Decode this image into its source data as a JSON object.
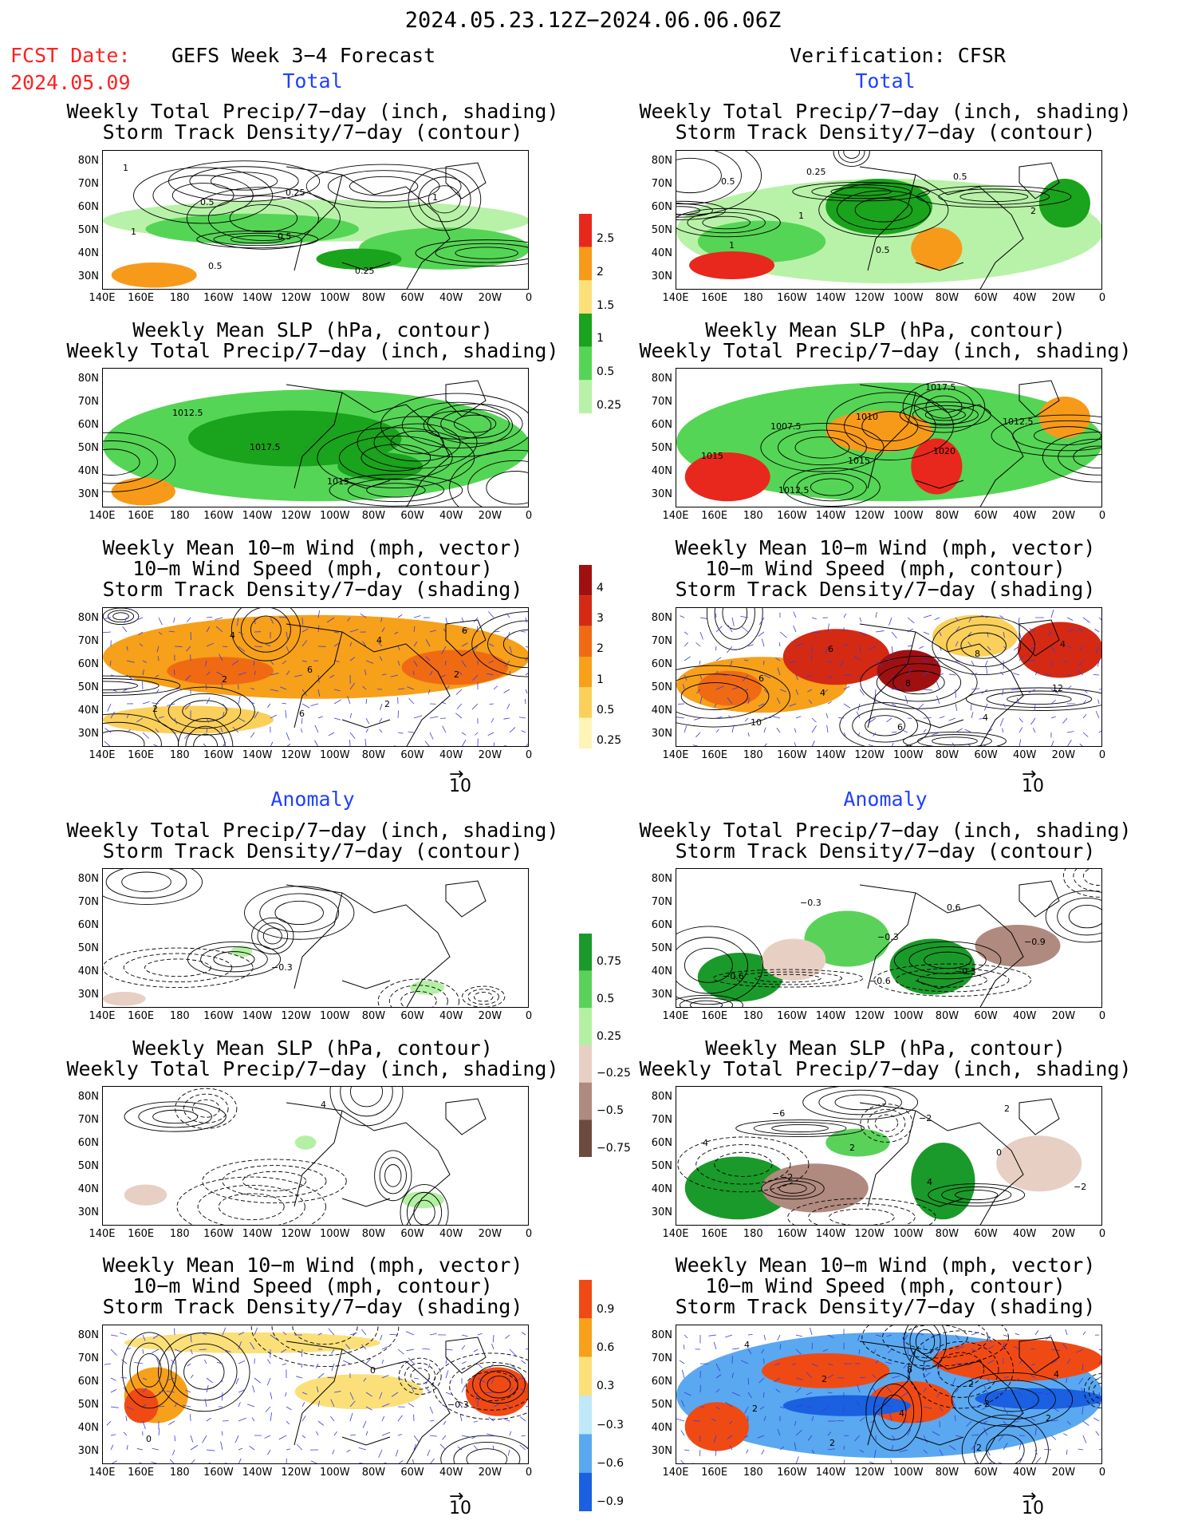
{
  "header": {
    "date_range": "2024.05.23.12Z−2024.06.06.06Z",
    "fcst_label": "FCST Date:",
    "fcst_date": "2024.05.09",
    "left_title": "GEFS Week 3−4 Forecast",
    "right_title": "Verification: CFSR"
  },
  "sections": {
    "total_left": "Total",
    "total_right": "Total",
    "anom_left": "Anomaly",
    "anom_right": "Anomaly"
  },
  "panel_titles": {
    "precip_storm": [
      "Weekly Total Precip/7−day (inch, shading)",
      "Storm Track Density/7−day (contour)"
    ],
    "slp_precip": [
      "Weekly Mean SLP (hPa, contour)",
      "Weekly Total Precip/7−day (inch, shading)"
    ],
    "wind_storm": [
      "Weekly Mean 10−m Wind (mph, vector)",
      "10−m Wind Speed (mph, contour)",
      "Storm Track Density/7−day (shading)"
    ]
  },
  "axes": {
    "lat_labels": [
      "80N",
      "70N",
      "60N",
      "50N",
      "40N",
      "30N"
    ],
    "lon_labels": [
      "140E",
      "160E",
      "180",
      "160W",
      "140W",
      "120W",
      "100W",
      "80W",
      "60W",
      "40W",
      "20W",
      "0"
    ]
  },
  "vector_ref": "10",
  "colorbars": {
    "total_precip": {
      "labels": [
        "2.5",
        "2",
        "1.5",
        "1",
        "0.5",
        "0.25"
      ],
      "colors": [
        "#e8281c",
        "#f79a1a",
        "#fbe07a",
        "#1aa31c",
        "#55d555",
        "#b8f2a8"
      ]
    },
    "total_storm": {
      "labels": [
        "4",
        "3",
        "2",
        "1",
        "0.5",
        "0.25"
      ],
      "colors": [
        "#a01010",
        "#d42a14",
        "#f06a14",
        "#f7a01a",
        "#fbd05a",
        "#fef4b8"
      ]
    },
    "anom_precip": {
      "labels": [
        "0.75",
        "0.5",
        "0.25",
        "−0.25",
        "−0.5",
        "−0.75"
      ],
      "colors": [
        "#1a9a2a",
        "#5ad25a",
        "#b4f0a4",
        "#e8cfc4",
        "#b08a7e",
        "#6e4a3e"
      ]
    },
    "anom_storm": {
      "labels": [
        "0.9",
        "0.6",
        "0.3",
        "−0.3",
        "−0.6",
        "−0.9"
      ],
      "colors": [
        "#f04a14",
        "#f7a01a",
        "#fbe07a",
        "#bfe8f8",
        "#5aa8f0",
        "#1a60e0"
      ]
    }
  },
  "panel_labels": {
    "p1l": [
      "1",
      "0.5",
      "0.5",
      "0.25",
      "1",
      "1",
      "0.5",
      "0.25"
    ],
    "p1r": [
      "0.5",
      "1",
      "0.5",
      "0.5",
      "2",
      "1",
      "0.25"
    ],
    "p2l": [
      "1012.5",
      "1017.5",
      "1015"
    ],
    "p2r": [
      "1007.5",
      "1015",
      "1017.5",
      "1012.5",
      "1015",
      "1012.5",
      "1010",
      "1020"
    ],
    "p3l": [
      "2",
      "6",
      "4",
      "2",
      "2",
      "4",
      "6",
      "2",
      "6"
    ],
    "p3r": [
      "4",
      "6",
      "8",
      "12",
      "10",
      "6",
      "8",
      "4",
      "4",
      "6"
    ],
    "p4l": [
      "−0.3"
    ],
    "p4r": [
      "−0.6",
      "0.6",
      "−0.9",
      "−0.6",
      "−0.3",
      "−0.3",
      "−0.3"
    ],
    "p5l": [
      "4"
    ],
    "p5r": [
      "−2",
      "0",
      "−2",
      "−6",
      "2",
      "4",
      "2",
      "4",
      "−2"
    ],
    "p6l": [
      "0",
      "−0.3",
      "0"
    ],
    "p6r": [
      "2",
      "2",
      "4",
      "2",
      "4",
      "2",
      "4",
      "2",
      "2",
      "8",
      "2"
    ]
  },
  "chart_data": [
    {
      "type": "heatmap",
      "title": "Weekly Total Precip/7−day (inch, shading) / Storm Track Density/7−day (contour)",
      "column": "GEFS Week 3−4 Forecast",
      "section": "Total"
    },
    {
      "type": "heatmap",
      "title": "Weekly Total Precip/7−day (inch, shading) / Storm Track Density/7−day (contour)",
      "column": "Verification: CFSR",
      "section": "Total"
    },
    {
      "type": "heatmap",
      "title": "Weekly Mean SLP (hPa, contour) / Weekly Total Precip/7−day (inch, shading)",
      "column": "GEFS Week 3−4 Forecast",
      "section": "Total"
    },
    {
      "type": "heatmap",
      "title": "Weekly Mean SLP (hPa, contour) / Weekly Total Precip/7−day (inch, shading)",
      "column": "Verification: CFSR",
      "section": "Total"
    },
    {
      "type": "heatmap",
      "title": "Weekly Mean 10−m Wind (mph, vector) / 10−m Wind Speed (mph, contour) / Storm Track Density/7−day (shading)",
      "column": "GEFS Week 3−4 Forecast",
      "section": "Total"
    },
    {
      "type": "heatmap",
      "title": "Weekly Mean 10−m Wind (mph, vector) / 10−m Wind Speed (mph, contour) / Storm Track Density/7−day (shading)",
      "column": "Verification: CFSR",
      "section": "Total"
    },
    {
      "type": "heatmap",
      "title": "Weekly Total Precip/7−day (inch, shading) / Storm Track Density/7−day (contour)",
      "column": "GEFS Week 3−4 Forecast",
      "section": "Anomaly"
    },
    {
      "type": "heatmap",
      "title": "Weekly Total Precip/7−day (inch, shading) / Storm Track Density/7−day (contour)",
      "column": "Verification: CFSR",
      "section": "Anomaly"
    },
    {
      "type": "heatmap",
      "title": "Weekly Mean SLP (hPa, contour) / Weekly Total Precip/7−day (inch, shading)",
      "column": "GEFS Week 3−4 Forecast",
      "section": "Anomaly"
    },
    {
      "type": "heatmap",
      "title": "Weekly Mean SLP (hPa, contour) / Weekly Total Precip/7−day (inch, shading)",
      "column": "Verification: CFSR",
      "section": "Anomaly"
    },
    {
      "type": "heatmap",
      "title": "Weekly Mean 10−m Wind (mph, vector) / 10−m Wind Speed (mph, contour) / Storm Track Density/7−day (shading)",
      "column": "GEFS Week 3−4 Forecast",
      "section": "Anomaly"
    },
    {
      "type": "heatmap",
      "title": "Weekly Mean 10−m Wind (mph, vector) / 10−m Wind Speed (mph, contour) / Storm Track Density/7−day (shading)",
      "column": "Verification: CFSR",
      "section": "Anomaly"
    }
  ]
}
